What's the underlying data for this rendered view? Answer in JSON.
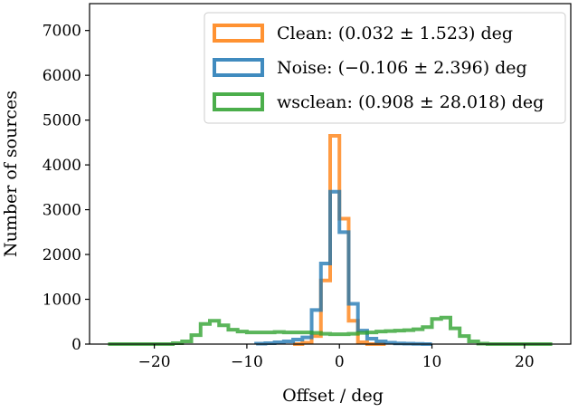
{
  "chart_data": {
    "type": "histogram",
    "xlabel": "Offset / deg",
    "ylabel": "Number of sources",
    "xlim": [
      -27,
      25
    ],
    "ylim": [
      0,
      7600
    ],
    "xticks": [
      -20,
      -10,
      0,
      10,
      20
    ],
    "xtick_labels": [
      "−20",
      "−10",
      "0",
      "10",
      "20"
    ],
    "yticks": [
      0,
      1000,
      2000,
      3000,
      4000,
      5000,
      6000,
      7000
    ],
    "ytick_labels": [
      "0",
      "1000",
      "2000",
      "3000",
      "4000",
      "5000",
      "6000",
      "7000"
    ],
    "grid": false,
    "legend_position": "top-right",
    "series": [
      {
        "name": "Clean: (0.032 ± 1.523) deg",
        "color": "#ff7f0e",
        "step_x": [
          -5,
          -4,
          -3,
          -2,
          -1,
          0,
          1,
          2,
          3,
          4,
          5
        ],
        "step_y": [
          0,
          30,
          180,
          1420,
          4650,
          2800,
          520,
          40,
          0,
          0
        ]
      },
      {
        "name": "Noise: (−0.106 ± 2.396) deg",
        "color": "#1f77b4",
        "step_x": [
          -9,
          -8,
          -7,
          -6,
          -5,
          -4,
          -3,
          -2,
          -1,
          0,
          1,
          2,
          3,
          4,
          5,
          6,
          7,
          8,
          9,
          10
        ],
        "step_y": [
          10,
          20,
          40,
          60,
          100,
          150,
          760,
          1800,
          3400,
          2500,
          900,
          300,
          120,
          60,
          30,
          15,
          10,
          5,
          0
        ]
      },
      {
        "name": "wsclean: (0.908 ± 28.018) deg",
        "color": "#2ca02c",
        "step_x": [
          -25,
          -18,
          -17,
          -16,
          -15,
          -14,
          -13,
          -12,
          -11,
          -10,
          -9,
          -8,
          -7,
          -6,
          -5,
          -4,
          -3,
          -2,
          -1,
          0,
          1,
          2,
          3,
          4,
          5,
          6,
          7,
          8,
          9,
          10,
          11,
          12,
          13,
          14,
          15,
          16,
          23
        ],
        "step_y": [
          0,
          20,
          60,
          200,
          450,
          520,
          420,
          320,
          280,
          260,
          260,
          260,
          270,
          260,
          260,
          260,
          250,
          230,
          220,
          220,
          230,
          250,
          260,
          280,
          290,
          300,
          310,
          330,
          380,
          560,
          590,
          350,
          180,
          60,
          10,
          0
        ]
      }
    ]
  }
}
